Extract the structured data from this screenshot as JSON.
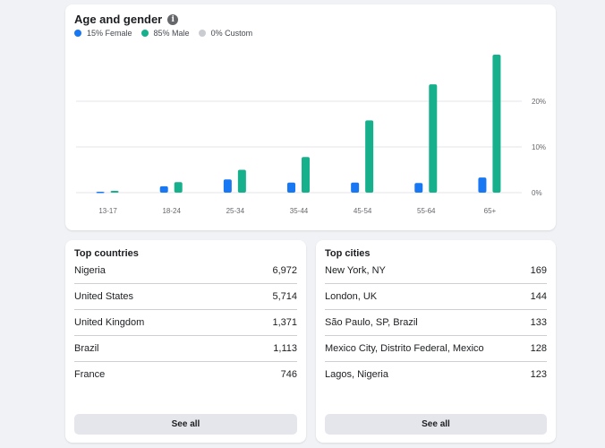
{
  "age_gender": {
    "title": "Age and gender",
    "legend": [
      {
        "label": "15% Female",
        "color": "#1877f2"
      },
      {
        "label": "85% Male",
        "color": "#17b08d"
      },
      {
        "label": "0% Custom",
        "color": "#c9ccd1"
      }
    ]
  },
  "chart_data": {
    "type": "bar",
    "categories": [
      "13-17",
      "18-24",
      "25-34",
      "35-44",
      "45-54",
      "55-64",
      "65+"
    ],
    "series": [
      {
        "name": "Female",
        "color": "#1877f2",
        "values": [
          0.2,
          1.4,
          2.9,
          2.2,
          2.2,
          2.1,
          3.3
        ]
      },
      {
        "name": "Male",
        "color": "#17b08d",
        "values": [
          0.4,
          2.3,
          5.0,
          7.8,
          15.8,
          23.7,
          30.2
        ]
      }
    ],
    "yticks": [
      {
        "value": 0,
        "label": "0%"
      },
      {
        "value": 10,
        "label": "10%"
      },
      {
        "value": 20,
        "label": "20%"
      }
    ],
    "ylim": [
      0,
      30
    ],
    "grid": true,
    "y_axis_side": "right"
  },
  "top_countries": {
    "title": "Top countries",
    "rows": [
      {
        "name": "Nigeria",
        "value": "6,972"
      },
      {
        "name": "United States",
        "value": "5,714"
      },
      {
        "name": "United Kingdom",
        "value": "1,371"
      },
      {
        "name": "Brazil",
        "value": "1,113"
      },
      {
        "name": "France",
        "value": "746"
      }
    ],
    "see_all": "See all"
  },
  "top_cities": {
    "title": "Top cities",
    "rows": [
      {
        "name": "New York, NY",
        "value": "169"
      },
      {
        "name": "London, UK",
        "value": "144"
      },
      {
        "name": "São Paulo, SP, Brazil",
        "value": "133"
      },
      {
        "name": "Mexico City, Distrito Federal, Mexico",
        "value": "128"
      },
      {
        "name": "Lagos, Nigeria",
        "value": "123"
      }
    ],
    "see_all": "See all"
  }
}
